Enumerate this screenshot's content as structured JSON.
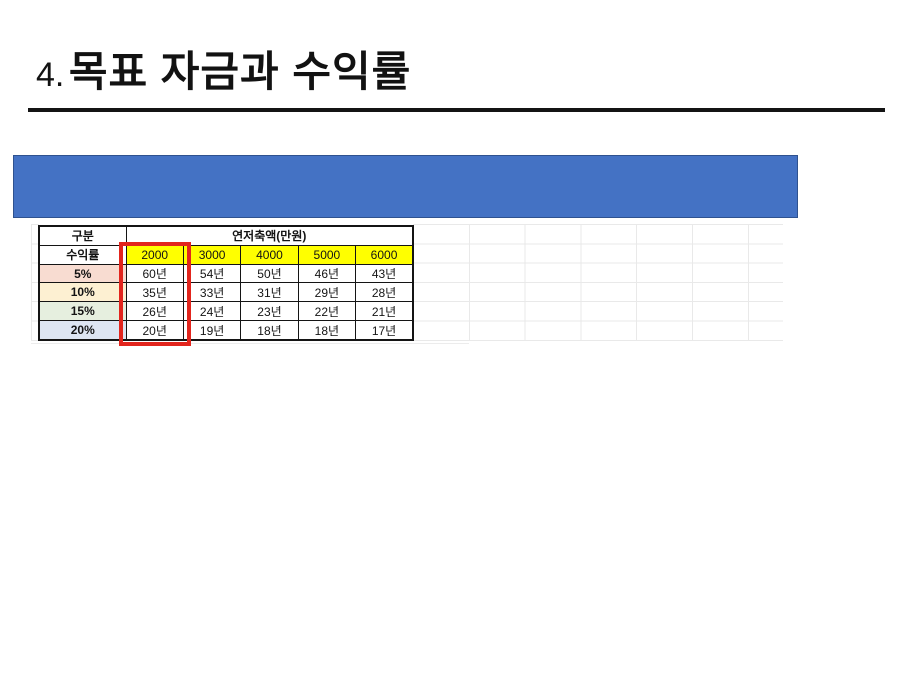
{
  "slide": {
    "title_number": "4.",
    "title_text": "목표 자금과 수익률"
  },
  "table": {
    "corner_header": "구분",
    "span_header": "연저축액(만원)",
    "rate_header": "수익률",
    "amounts": [
      "2000",
      "3000",
      "4000",
      "5000",
      "6000"
    ],
    "rows": [
      {
        "rate": "5%",
        "bg": "#f8dcd1",
        "values": [
          "60년",
          "54년",
          "50년",
          "46년",
          "43년"
        ]
      },
      {
        "rate": "10%",
        "bg": "#fdf0d2",
        "values": [
          "35년",
          "33년",
          "31년",
          "29년",
          "28년"
        ]
      },
      {
        "rate": "15%",
        "bg": "#e6efdf",
        "values": [
          "26년",
          "24년",
          "23년",
          "22년",
          "21년"
        ]
      },
      {
        "rate": "20%",
        "bg": "#dde5f2",
        "values": [
          "20년",
          "19년",
          "18년",
          "18년",
          "17년"
        ]
      }
    ]
  },
  "colors": {
    "banner_blue": "#4472c4",
    "highlight_yellow": "#ffff00",
    "annotation_red": "#e2251d"
  }
}
